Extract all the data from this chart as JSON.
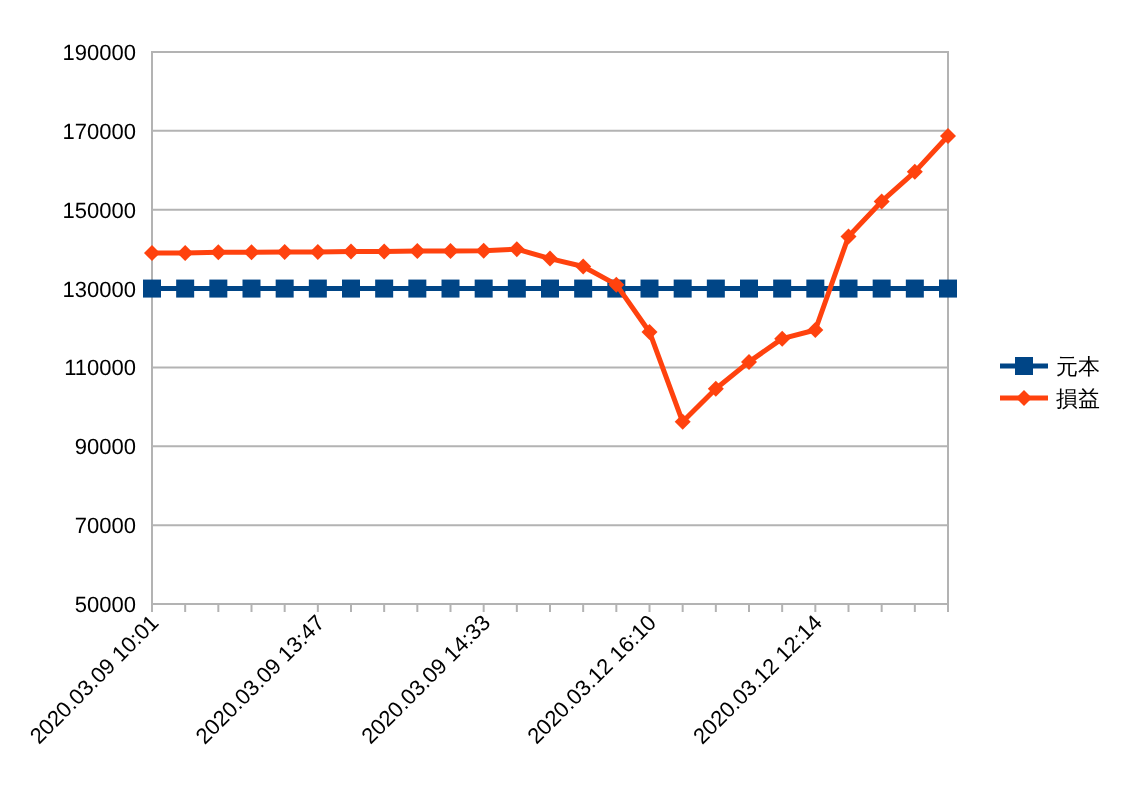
{
  "chart_data": {
    "type": "line",
    "categories": [
      "2020.03.09 10:01",
      null,
      null,
      null,
      null,
      "2020.03.09 13:47",
      null,
      null,
      null,
      null,
      "2020.03.09 14:33",
      null,
      null,
      null,
      null,
      "2020.03.12 16:10",
      null,
      null,
      null,
      null,
      "2020.03.12 12:14",
      null,
      null,
      null,
      null
    ],
    "series": [
      {
        "name": "元本",
        "color": "#004586",
        "marker": "square",
        "values": [
          130000,
          130000,
          130000,
          130000,
          130000,
          130000,
          130000,
          130000,
          130000,
          130000,
          130000,
          130000,
          130000,
          130000,
          130000,
          130000,
          130000,
          130000,
          130000,
          130000,
          130000,
          130000,
          130000,
          130000,
          130000
        ]
      },
      {
        "name": "損益",
        "color": "#ff420e",
        "marker": "diamond",
        "values": [
          139000,
          139000,
          139200,
          139200,
          139300,
          139300,
          139400,
          139400,
          139500,
          139500,
          139600,
          140000,
          137600,
          135600,
          131000,
          119000,
          96200,
          104600,
          111400,
          117300,
          119500,
          143200,
          152100,
          159600,
          168700
        ]
      }
    ],
    "ylim": [
      50000,
      190000
    ],
    "yticks": [
      50000,
      70000,
      90000,
      110000,
      130000,
      150000,
      170000,
      190000
    ],
    "grid": "y",
    "legend": "right",
    "line_style": "solid"
  }
}
